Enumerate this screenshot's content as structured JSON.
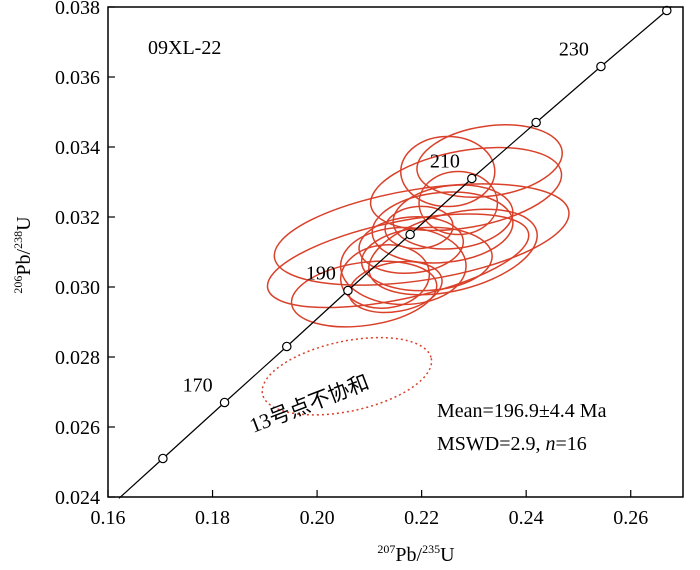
{
  "chart_data": {
    "type": "scatter",
    "subtype": "U-Pb concordia diagram with error ellipses",
    "sample_label": "09XL-22",
    "xlabel": {
      "sup1": "207",
      "main1": "Pb/",
      "sup2": "235",
      "main2": "U"
    },
    "ylabel": {
      "sup1": "206",
      "main1": "Pb/",
      "sup2": "238",
      "main2": "U"
    },
    "xlim": [
      0.16,
      0.27
    ],
    "ylim": [
      0.024,
      0.038
    ],
    "x_ticks": [
      "0.16",
      "0.18",
      "0.20",
      "0.22",
      "0.24",
      "0.26"
    ],
    "x_tick_values": [
      0.16,
      0.18,
      0.2,
      0.22,
      0.24,
      0.26
    ],
    "y_ticks": [
      "0.024",
      "0.026",
      "0.028",
      "0.030",
      "0.032",
      "0.034",
      "0.036",
      "0.038"
    ],
    "y_tick_values": [
      0.024,
      0.026,
      0.028,
      0.03,
      0.032,
      0.034,
      0.036,
      0.038
    ],
    "concordia_points": [
      {
        "x": 0.1705,
        "y": 0.0251
      },
      {
        "x": 0.1823,
        "y": 0.0267,
        "label": "170"
      },
      {
        "x": 0.1942,
        "y": 0.0283
      },
      {
        "x": 0.2059,
        "y": 0.0299,
        "label": "190"
      },
      {
        "x": 0.2178,
        "y": 0.0315
      },
      {
        "x": 0.2296,
        "y": 0.0331,
        "label": "210"
      },
      {
        "x": 0.2419,
        "y": 0.0347
      },
      {
        "x": 0.2543,
        "y": 0.0363,
        "label": "230"
      },
      {
        "x": 0.2669,
        "y": 0.0379
      }
    ],
    "ellipses": [
      {
        "cx": 0.2155,
        "cy": 0.03075,
        "a": 0.0255,
        "b": 0.0011,
        "angle": 12
      },
      {
        "cx": 0.22,
        "cy": 0.0315,
        "a": 0.0285,
        "b": 0.0013,
        "angle": 9
      },
      {
        "cx": 0.2285,
        "cy": 0.0328,
        "a": 0.0185,
        "b": 0.0011,
        "angle": 10
      },
      {
        "cx": 0.233,
        "cy": 0.0336,
        "a": 0.014,
        "b": 0.001,
        "angle": 8
      },
      {
        "cx": 0.226,
        "cy": 0.032,
        "a": 0.0115,
        "b": 0.0009,
        "angle": 6
      },
      {
        "cx": 0.224,
        "cy": 0.0317,
        "a": 0.0135,
        "b": 0.001,
        "angle": 5
      },
      {
        "cx": 0.218,
        "cy": 0.0312,
        "a": 0.01,
        "b": 0.0008,
        "angle": 5
      },
      {
        "cx": 0.221,
        "cy": 0.0308,
        "a": 0.0125,
        "b": 0.0009,
        "angle": 3
      },
      {
        "cx": 0.225,
        "cy": 0.0333,
        "a": 0.009,
        "b": 0.001,
        "angle": 0
      },
      {
        "cx": 0.215,
        "cy": 0.03,
        "a": 0.009,
        "b": 0.0007,
        "angle": 10
      },
      {
        "cx": 0.209,
        "cy": 0.0298,
        "a": 0.014,
        "b": 0.0009,
        "angle": 8
      },
      {
        "cx": 0.213,
        "cy": 0.0303,
        "a": 0.0085,
        "b": 0.0009,
        "angle": 6
      },
      {
        "cx": 0.2195,
        "cy": 0.0317,
        "a": 0.0065,
        "b": 0.0006,
        "angle": 4
      },
      {
        "cx": 0.227,
        "cy": 0.0324,
        "a": 0.0075,
        "b": 0.0009,
        "angle": 0
      },
      {
        "cx": 0.2165,
        "cy": 0.0306,
        "a": 0.012,
        "b": 0.0011,
        "angle": 0
      },
      {
        "cx": 0.226,
        "cy": 0.031,
        "a": 0.0165,
        "b": 0.0011,
        "angle": 14
      }
    ],
    "discordant_ellipse": {
      "cx": 0.2057,
      "cy": 0.02745,
      "a": 0.0165,
      "b": 0.001,
      "angle": 12
    },
    "annotations": {
      "discordant_note": "13号点不协和",
      "mean": "Mean=196.9±4.4 Ma",
      "mswd_prefix": "MSWD=2.9, ",
      "mswd_n": "n",
      "mswd_suffix": "=16"
    },
    "colors": {
      "ellipse": "#d9412a",
      "axis": "#000000",
      "marker_fill": "#ffffff"
    }
  }
}
